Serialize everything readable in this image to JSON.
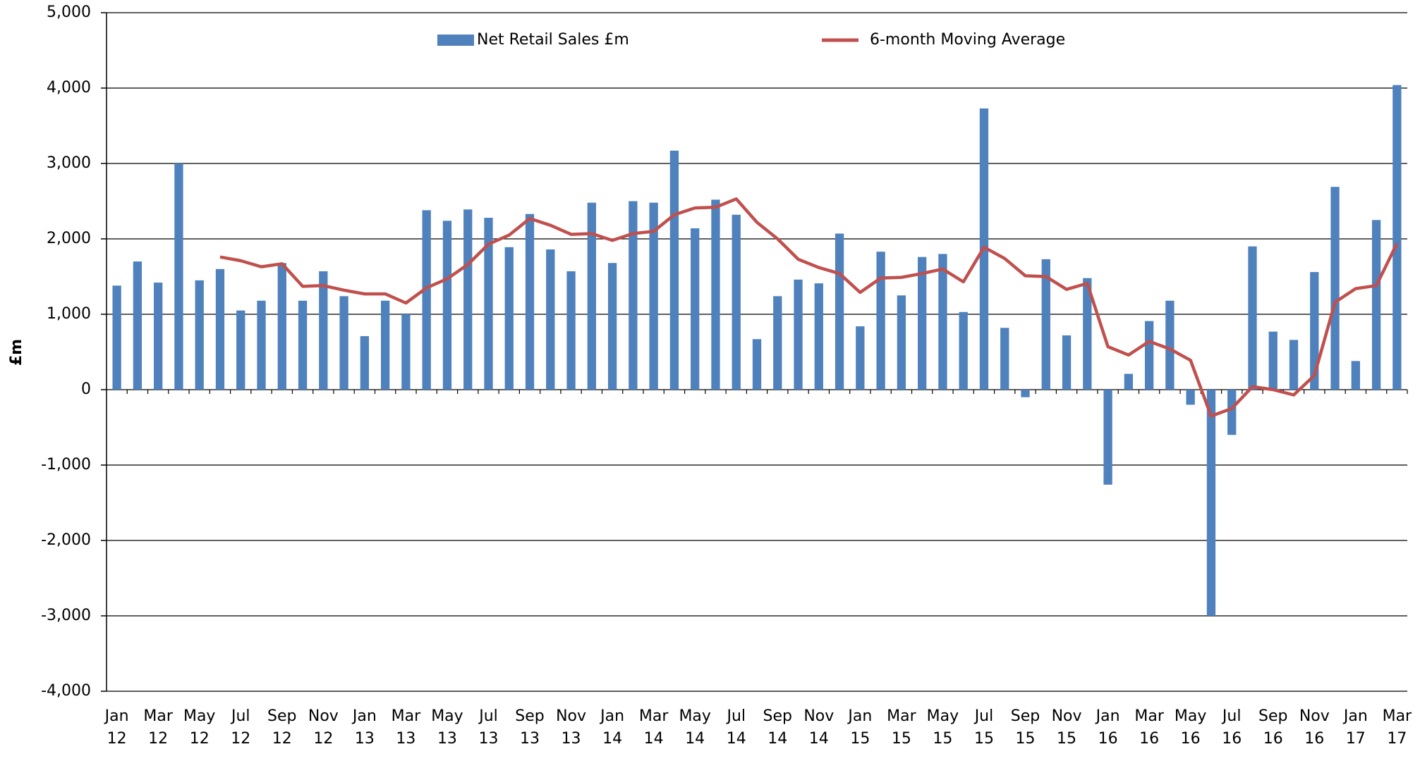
{
  "chart_data": {
    "type": "bar_line",
    "y_label": "£m",
    "categories": [
      "Jan 12",
      null,
      "Mar 12",
      null,
      "May 12",
      null,
      "Jul 12",
      null,
      "Sep 12",
      null,
      "Nov 12",
      null,
      "Jan 13",
      null,
      "Mar 13",
      null,
      "May 13",
      null,
      "Jul 13",
      null,
      "Sep 13",
      null,
      "Nov 13",
      null,
      "Jan 14",
      null,
      "Mar 14",
      null,
      "May 14",
      null,
      "Jul 14",
      null,
      "Sep 14",
      null,
      "Nov 14",
      null,
      "Jan 15",
      null,
      "Mar 15",
      null,
      "May 15",
      null,
      "Jul 15",
      null,
      "Sep 15",
      null,
      "Nov 15",
      null,
      "Jan 16",
      null,
      "Mar 16",
      null,
      "May 16",
      null,
      "Jul 16",
      null,
      "Sep 16",
      null,
      "Nov 16",
      null,
      "Jan 17",
      null,
      "Mar 17"
    ],
    "series": [
      {
        "name": "Net Retail Sales £m",
        "kind": "bar",
        "color": "#4f81bd",
        "values": [
          1380,
          1700,
          1420,
          3000,
          1450,
          1600,
          1050,
          1180,
          1680,
          1180,
          1570,
          1240,
          710,
          1180,
          1000,
          2380,
          2240,
          2390,
          2280,
          1890,
          2330,
          1860,
          1570,
          2480,
          1680,
          2500,
          2480,
          3170,
          2140,
          2520,
          2320,
          670,
          1240,
          1460,
          1410,
          2070,
          840,
          1830,
          1250,
          1760,
          1800,
          1030,
          3730,
          820,
          -100,
          1730,
          720,
          1480,
          -1260,
          210,
          910,
          1180,
          -200,
          -3000,
          -600,
          1900,
          770,
          660,
          1560,
          2690,
          380,
          2250,
          4040
        ]
      },
      {
        "name": "6-month Moving Average",
        "kind": "line",
        "color": "#c0504d",
        "values": [
          null,
          null,
          null,
          null,
          null,
          1760,
          1710,
          1630,
          1670,
          1370,
          1380,
          1320,
          1270,
          1270,
          1150,
          1350,
          1470,
          1660,
          1930,
          2050,
          2270,
          2180,
          2060,
          2070,
          1980,
          2070,
          2100,
          2320,
          2410,
          2420,
          2530,
          2220,
          2000,
          1730,
          1620,
          1540,
          1290,
          1480,
          1490,
          1540,
          1600,
          1430,
          1890,
          1740,
          1510,
          1500,
          1330,
          1410,
          570,
          460,
          640,
          540,
          390,
          -350,
          -250,
          40,
          0,
          -70,
          190,
          1160,
          1340,
          1380,
          1940
        ]
      }
    ],
    "ylim": [
      -4000,
      5000
    ],
    "yticks": [
      {
        "value": -4000,
        "label": "-4,000"
      },
      {
        "value": -3000,
        "label": "-3,000"
      },
      {
        "value": -2000,
        "label": "-2,000"
      },
      {
        "value": -1000,
        "label": "-1,000"
      },
      0,
      {
        "value": 1000,
        "label": "1,000"
      },
      {
        "value": 2000,
        "label": "2,000"
      },
      {
        "value": 3000,
        "label": "3,000"
      },
      {
        "value": 4000,
        "label": "4,000"
      },
      {
        "value": 5000,
        "label": "5,000"
      }
    ],
    "grid": true,
    "negative_tick_color": "#ff0000",
    "legend": "top"
  }
}
